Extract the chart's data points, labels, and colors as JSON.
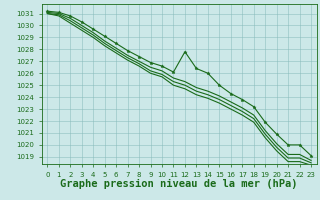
{
  "title": "Graphe pression niveau de la mer (hPa)",
  "xlabel_hours": [
    0,
    1,
    2,
    3,
    4,
    5,
    6,
    7,
    8,
    9,
    10,
    11,
    12,
    13,
    14,
    15,
    16,
    17,
    18,
    19,
    20,
    21,
    22,
    23
  ],
  "xlim": [
    -0.5,
    23.5
  ],
  "ylim": [
    1018.4,
    1031.8
  ],
  "yticks": [
    1019,
    1020,
    1021,
    1022,
    1023,
    1024,
    1025,
    1026,
    1027,
    1028,
    1029,
    1030,
    1031
  ],
  "bg_color": "#cce8e8",
  "grid_color": "#88bbbb",
  "line_color": "#1a6b1a",
  "series_top": [
    1031.2,
    1031.1,
    1030.8,
    1030.3,
    1029.7,
    1029.1,
    1028.5,
    1027.9,
    1027.4,
    1026.9,
    1026.6,
    1026.1,
    1027.8,
    1026.4,
    1026.0,
    1025.0,
    1024.3,
    1023.8,
    1023.2,
    1021.9,
    1020.9,
    1020.0,
    1020.0,
    1019.1
  ],
  "series_2": [
    1031.1,
    1031.0,
    1030.6,
    1030.0,
    1029.4,
    1028.7,
    1028.1,
    1027.5,
    1027.0,
    1026.5,
    1026.2,
    1025.6,
    1025.3,
    1024.8,
    1024.5,
    1024.1,
    1023.6,
    1023.1,
    1022.5,
    1021.2,
    1020.1,
    1019.2,
    1019.2,
    1018.7
  ],
  "series_3": [
    1031.0,
    1030.9,
    1030.4,
    1029.8,
    1029.2,
    1028.5,
    1027.9,
    1027.3,
    1026.8,
    1026.2,
    1025.9,
    1025.3,
    1025.0,
    1024.5,
    1024.2,
    1023.8,
    1023.3,
    1022.8,
    1022.2,
    1020.9,
    1019.8,
    1018.9,
    1018.9,
    1018.5
  ],
  "series_bot": [
    1031.0,
    1030.8,
    1030.2,
    1029.6,
    1029.0,
    1028.3,
    1027.7,
    1027.1,
    1026.6,
    1026.0,
    1025.7,
    1025.0,
    1024.7,
    1024.2,
    1023.9,
    1023.5,
    1023.0,
    1022.5,
    1021.9,
    1020.6,
    1019.5,
    1018.6,
    1018.6,
    1018.3
  ],
  "font_family": "monospace",
  "title_fontsize": 7.5,
  "tick_fontsize": 5,
  "line_width": 0.8,
  "marker_size": 2.5
}
